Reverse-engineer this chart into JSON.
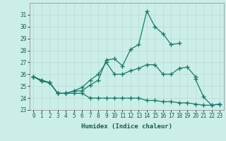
{
  "xlabel": "Humidex (Indice chaleur)",
  "x": [
    0,
    1,
    2,
    3,
    4,
    5,
    6,
    7,
    8,
    9,
    10,
    11,
    12,
    13,
    14,
    15,
    16,
    17,
    18,
    19,
    20,
    21,
    22,
    23
  ],
  "line1": [
    25.8,
    25.5,
    25.3,
    24.4,
    24.4,
    24.6,
    24.6,
    25.1,
    25.5,
    27.2,
    27.3,
    26.7,
    28.1,
    28.5,
    31.3,
    30.0,
    29.4,
    28.5,
    28.6,
    null,
    25.6,
    24.1,
    23.4,
    23.5
  ],
  "line2": [
    25.8,
    25.5,
    25.3,
    24.4,
    24.4,
    24.6,
    24.9,
    25.5,
    26.0,
    27.0,
    26.0,
    26.0,
    26.3,
    26.5,
    26.8,
    26.8,
    26.0,
    26.0,
    26.5,
    26.6,
    25.8,
    null,
    null,
    null
  ],
  "line3": [
    25.8,
    25.4,
    25.3,
    24.4,
    24.4,
    24.4,
    24.4,
    24.0,
    24.0,
    24.0,
    24.0,
    24.0,
    24.0,
    24.0,
    23.8,
    23.8,
    23.7,
    23.7,
    23.6,
    23.6,
    23.5,
    23.4,
    23.4,
    23.5
  ],
  "ylim": [
    23,
    32
  ],
  "xlim": [
    -0.5,
    23.5
  ],
  "yticks": [
    23,
    24,
    25,
    26,
    27,
    28,
    29,
    30,
    31
  ],
  "xticks": [
    0,
    1,
    2,
    3,
    4,
    5,
    6,
    7,
    8,
    9,
    10,
    11,
    12,
    13,
    14,
    15,
    16,
    17,
    18,
    19,
    20,
    21,
    22,
    23
  ],
  "line_color": "#1a7a6a",
  "bg_color": "#cceee8",
  "grid_color": "#b8d8d4",
  "marker": "+",
  "markersize": 4,
  "linewidth": 0.9,
  "tick_fontsize": 5.5,
  "xlabel_fontsize": 6.5
}
